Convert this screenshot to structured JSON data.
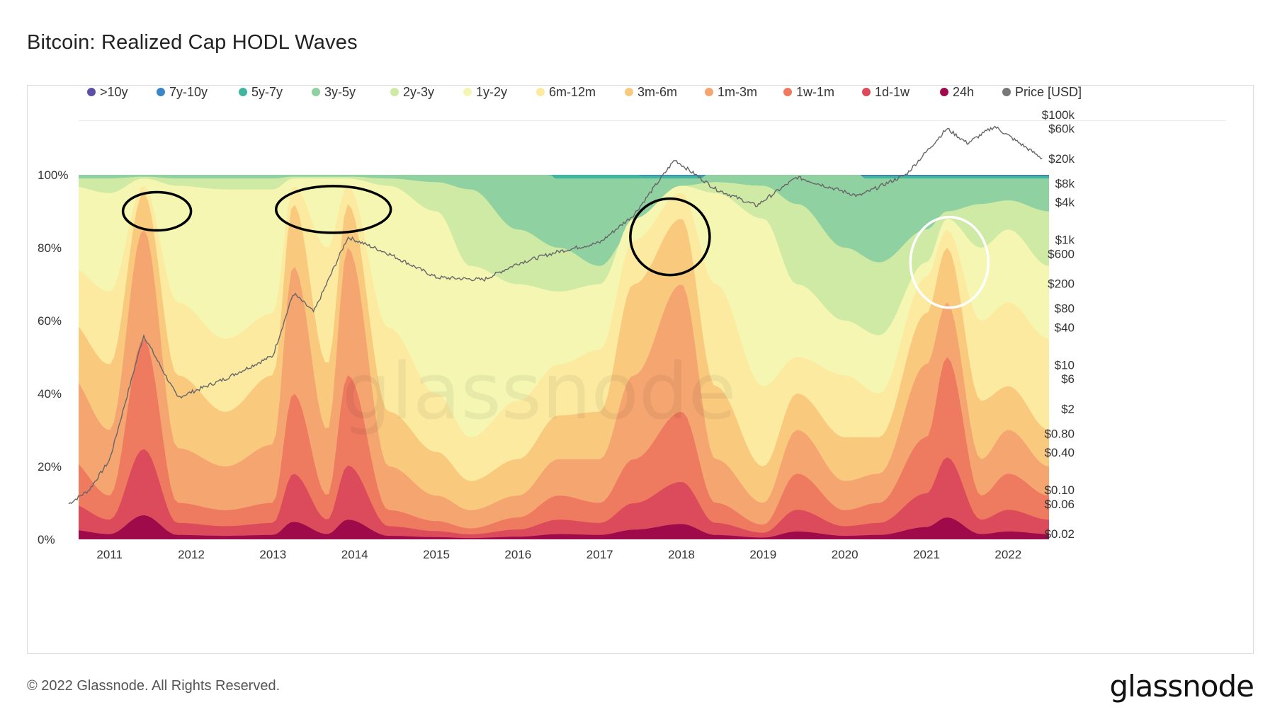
{
  "title": "Bitcoin: Realized Cap HODL Waves",
  "footer": "© 2022 Glassnode. All Rights Reserved.",
  "brand": "glassnode",
  "watermark": "glassnode",
  "chart_data": {
    "type": "area",
    "stacked": true,
    "title": "Bitcoin: Realized Cap HODL Waves",
    "x_range": [
      "2010-07",
      "2022-07"
    ],
    "x_ticks": [
      "2011",
      "2012",
      "2013",
      "2014",
      "2015",
      "2016",
      "2017",
      "2018",
      "2019",
      "2020",
      "2021",
      "2022"
    ],
    "left_axis": {
      "ticks": [
        "0%",
        "20%",
        "40%",
        "60%",
        "80%",
        "100%"
      ],
      "range": [
        0,
        100
      ]
    },
    "right_axis": {
      "scale": "log",
      "ticks": [
        "$0.02",
        "$0.06",
        "$0.10",
        "$0.40",
        "$0.80",
        "$2",
        "$6",
        "$10",
        "$40",
        "$80",
        "$200",
        "$600",
        "$1k",
        "$4k",
        "$8k",
        "$20k",
        "$60k",
        "$100k"
      ]
    },
    "legend_position": "top",
    "series": [
      {
        "name": ">10y",
        "color": "#5b4fa8"
      },
      {
        "name": "7y-10y",
        "color": "#3a86c8"
      },
      {
        "name": "5y-7y",
        "color": "#40b5a0"
      },
      {
        "name": "3y-5y",
        "color": "#8fd1a0"
      },
      {
        "name": "2y-3y",
        "color": "#cfeaa4"
      },
      {
        "name": "1y-2y",
        "color": "#f4f6b2"
      },
      {
        "name": "6m-12m",
        "color": "#fbeaa0"
      },
      {
        "name": "3m-6m",
        "color": "#f9c97e"
      },
      {
        "name": "1m-3m",
        "color": "#f4a570"
      },
      {
        "name": "1w-1m",
        "color": "#ee7a5f"
      },
      {
        "name": "1d-1w",
        "color": "#dc4b5b"
      },
      {
        "name": "24h",
        "color": "#9e0a4a"
      },
      {
        "name": "Price [USD]",
        "color": "#777777"
      }
    ],
    "short_term_band_pct": {
      "dates": [
        "2010-07",
        "2011-01",
        "2011-06",
        "2011-11",
        "2012-06",
        "2013-01",
        "2013-04",
        "2013-09",
        "2013-12",
        "2014-06",
        "2015-01",
        "2015-06",
        "2016-01",
        "2016-07",
        "2017-01",
        "2017-06",
        "2018-01",
        "2018-06",
        "2019-01",
        "2019-06",
        "2020-01",
        "2020-06",
        "2021-01",
        "2021-04",
        "2021-09",
        "2022-01",
        "2022-07"
      ],
      "lt_1m": [
        22,
        12,
        55,
        10,
        8,
        10,
        40,
        12,
        45,
        8,
        5,
        3,
        6,
        12,
        10,
        22,
        35,
        10,
        4,
        18,
        8,
        10,
        28,
        50,
        12,
        18,
        12
      ],
      "lt_3m": [
        45,
        30,
        85,
        25,
        20,
        26,
        75,
        30,
        80,
        20,
        12,
        8,
        12,
        22,
        22,
        45,
        70,
        22,
        10,
        30,
        16,
        18,
        48,
        65,
        22,
        30,
        20
      ],
      "lt_6m": [
        60,
        48,
        95,
        45,
        35,
        45,
        92,
        48,
        92,
        35,
        24,
        16,
        22,
        34,
        35,
        70,
        88,
        42,
        20,
        40,
        28,
        28,
        62,
        80,
        38,
        42,
        30
      ],
      "lt_12m": [
        75,
        68,
        97,
        65,
        55,
        62,
        97,
        80,
        97,
        58,
        40,
        28,
        38,
        48,
        52,
        82,
        95,
        70,
        42,
        50,
        45,
        40,
        72,
        85,
        60,
        65,
        55
      ],
      "lt_2y": [
        97,
        95,
        99,
        97,
        96,
        96,
        99,
        99,
        99,
        97,
        90,
        75,
        70,
        68,
        70,
        88,
        97,
        95,
        88,
        70,
        60,
        56,
        76,
        88,
        80,
        85,
        75
      ],
      "lt_3y": [
        99,
        99,
        99.5,
        99,
        99,
        99,
        99.5,
        99.5,
        99.5,
        99,
        98,
        96,
        85,
        80,
        75,
        85,
        97,
        98,
        97,
        92,
        80,
        76,
        85,
        90,
        92,
        93,
        90
      ]
    },
    "price_usd": {
      "dates": [
        "2010-07",
        "2010-10",
        "2011-01",
        "2011-06",
        "2011-11",
        "2012-06",
        "2013-01",
        "2013-04",
        "2013-07",
        "2013-12",
        "2014-06",
        "2015-01",
        "2015-08",
        "2016-01",
        "2016-07",
        "2017-01",
        "2017-06",
        "2017-12",
        "2018-06",
        "2018-12",
        "2019-06",
        "2020-03",
        "2020-10",
        "2021-04",
        "2021-07",
        "2021-11",
        "2022-06"
      ],
      "values": [
        0.06,
        0.1,
        0.3,
        30,
        3,
        6,
        14,
        140,
        70,
        1100,
        600,
        250,
        230,
        420,
        650,
        900,
        2500,
        19000,
        6500,
        3500,
        10000,
        5000,
        11000,
        60000,
        35000,
        65000,
        20000
      ]
    }
  }
}
